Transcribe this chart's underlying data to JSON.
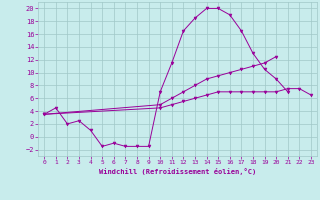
{
  "xlabel": "Windchill (Refroidissement éolien,°C)",
  "bg_color": "#c8ecec",
  "grid_color": "#a0c8c8",
  "line_color": "#990099",
  "xlim": [
    -0.5,
    23.5
  ],
  "ylim": [
    -3,
    21
  ],
  "xticks": [
    0,
    1,
    2,
    3,
    4,
    5,
    6,
    7,
    8,
    9,
    10,
    11,
    12,
    13,
    14,
    15,
    16,
    17,
    18,
    19,
    20,
    21,
    22,
    23
  ],
  "yticks": [
    -2,
    0,
    2,
    4,
    6,
    8,
    10,
    12,
    14,
    16,
    18,
    20
  ],
  "line1_x": [
    0,
    1,
    2,
    3,
    4,
    5,
    6,
    7,
    8,
    9,
    10,
    11,
    12,
    13,
    14,
    15,
    16,
    17,
    18,
    19,
    20,
    21
  ],
  "line1_y": [
    3.5,
    4.5,
    2.0,
    2.5,
    1.0,
    -1.5,
    -1.0,
    -1.5,
    -1.5,
    -1.5,
    7.0,
    11.5,
    16.5,
    18.5,
    20.0,
    20.0,
    19.0,
    16.5,
    13.0,
    10.5,
    9.0,
    7.0
  ],
  "line2_x": [
    0,
    10,
    11,
    12,
    13,
    14,
    15,
    16,
    17,
    18,
    19,
    20
  ],
  "line2_y": [
    3.5,
    5.0,
    6.0,
    7.0,
    8.0,
    9.0,
    9.5,
    10.0,
    10.5,
    11.0,
    11.5,
    12.5
  ],
  "line3_x": [
    0,
    10,
    11,
    12,
    13,
    14,
    15,
    16,
    17,
    18,
    19,
    20,
    21,
    22,
    23
  ],
  "line3_y": [
    3.5,
    4.5,
    5.0,
    5.5,
    6.0,
    6.5,
    7.0,
    7.0,
    7.0,
    7.0,
    7.0,
    7.0,
    7.5,
    7.5,
    6.5
  ]
}
